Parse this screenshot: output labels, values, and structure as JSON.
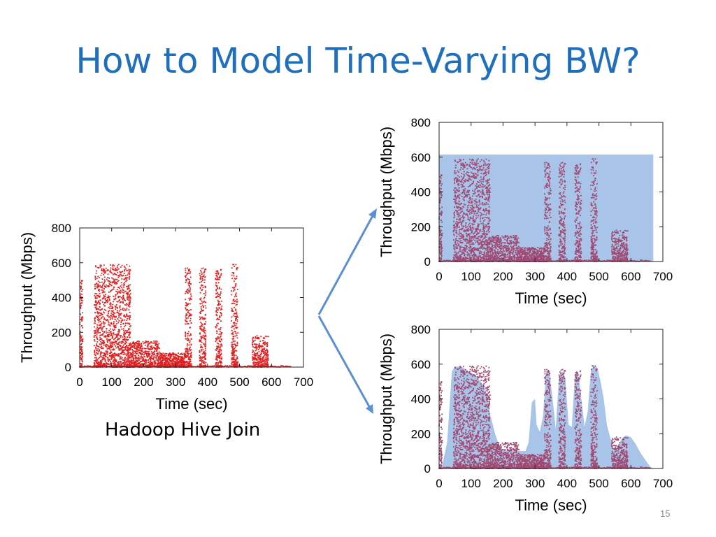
{
  "slide": {
    "title": "How to Model Time-Varying BW?",
    "caption": "Hadoop Hive Join",
    "page_number": "15"
  },
  "colors": {
    "title": "#1f6fbd",
    "points": "#e02020",
    "points_overlay": "#a04870",
    "envelope_fill": "#a8c4e8",
    "arrow": "#5b8fd0"
  },
  "chart_data": [
    {
      "type": "scatter",
      "id": "raw",
      "xlabel": "Time (sec)",
      "ylabel": "Throughput (Mbps)",
      "xlim": [
        0,
        700
      ],
      "ylim": [
        0,
        800
      ],
      "xticks": [
        0,
        100,
        200,
        300,
        400,
        500,
        600,
        700
      ],
      "yticks": [
        0,
        200,
        400,
        600,
        800
      ],
      "series": [
        {
          "bursts": [
            {
              "x": [
                0,
                10
              ],
              "max": 500
            },
            {
              "x": [
                45,
                160
              ],
              "max": 590
            },
            {
              "x": [
                160,
                250
              ],
              "max": 150
            },
            {
              "x": [
                250,
                330
              ],
              "max": 80
            },
            {
              "x": [
                330,
                350
              ],
              "max": 570
            },
            {
              "x": [
                375,
                395
              ],
              "max": 575
            },
            {
              "x": [
                425,
                445
              ],
              "max": 565
            },
            {
              "x": [
                475,
                495
              ],
              "max": 600
            },
            {
              "x": [
                540,
                590
              ],
              "max": 180
            }
          ]
        }
      ]
    },
    {
      "type": "scatter",
      "id": "constant-model",
      "xlabel": "Time (sec)",
      "ylabel": "Throughput (Mbps)",
      "xlim": [
        0,
        700
      ],
      "ylim": [
        0,
        800
      ],
      "xticks": [
        0,
        100,
        200,
        300,
        400,
        500,
        600,
        700
      ],
      "yticks": [
        0,
        200,
        400,
        600,
        800
      ],
      "model": {
        "kind": "constant",
        "x": [
          0,
          670
        ],
        "y": 615
      }
    },
    {
      "type": "scatter",
      "id": "varying-model",
      "xlabel": "Time (sec)",
      "ylabel": "Throughput (Mbps)",
      "xlim": [
        0,
        700
      ],
      "ylim": [
        0,
        800
      ],
      "xticks": [
        0,
        100,
        200,
        300,
        400,
        500,
        600,
        700
      ],
      "yticks": [
        0,
        200,
        400,
        600,
        800
      ],
      "model": {
        "kind": "envelope",
        "points": [
          [
            0,
            0
          ],
          [
            10,
            20
          ],
          [
            25,
            150
          ],
          [
            40,
            560
          ],
          [
            50,
            585
          ],
          [
            70,
            585
          ],
          [
            90,
            560
          ],
          [
            110,
            540
          ],
          [
            130,
            500
          ],
          [
            145,
            460
          ],
          [
            160,
            310
          ],
          [
            175,
            200
          ],
          [
            190,
            120
          ],
          [
            210,
            100
          ],
          [
            230,
            100
          ],
          [
            270,
            100
          ],
          [
            280,
            150
          ],
          [
            290,
            380
          ],
          [
            300,
            400
          ],
          [
            305,
            250
          ],
          [
            315,
            210
          ],
          [
            325,
            300
          ],
          [
            335,
            560
          ],
          [
            345,
            560
          ],
          [
            355,
            400
          ],
          [
            365,
            230
          ],
          [
            375,
            530
          ],
          [
            385,
            560
          ],
          [
            395,
            520
          ],
          [
            405,
            250
          ],
          [
            415,
            240
          ],
          [
            425,
            540
          ],
          [
            435,
            555
          ],
          [
            445,
            400
          ],
          [
            455,
            240
          ],
          [
            465,
            330
          ],
          [
            475,
            570
          ],
          [
            485,
            590
          ],
          [
            495,
            580
          ],
          [
            505,
            500
          ],
          [
            515,
            400
          ],
          [
            525,
            250
          ],
          [
            535,
            180
          ],
          [
            545,
            120
          ],
          [
            555,
            110
          ],
          [
            565,
            150
          ],
          [
            575,
            180
          ],
          [
            585,
            190
          ],
          [
            600,
            180
          ],
          [
            615,
            140
          ],
          [
            630,
            90
          ],
          [
            645,
            50
          ],
          [
            660,
            10
          ],
          [
            670,
            0
          ]
        ]
      }
    }
  ]
}
